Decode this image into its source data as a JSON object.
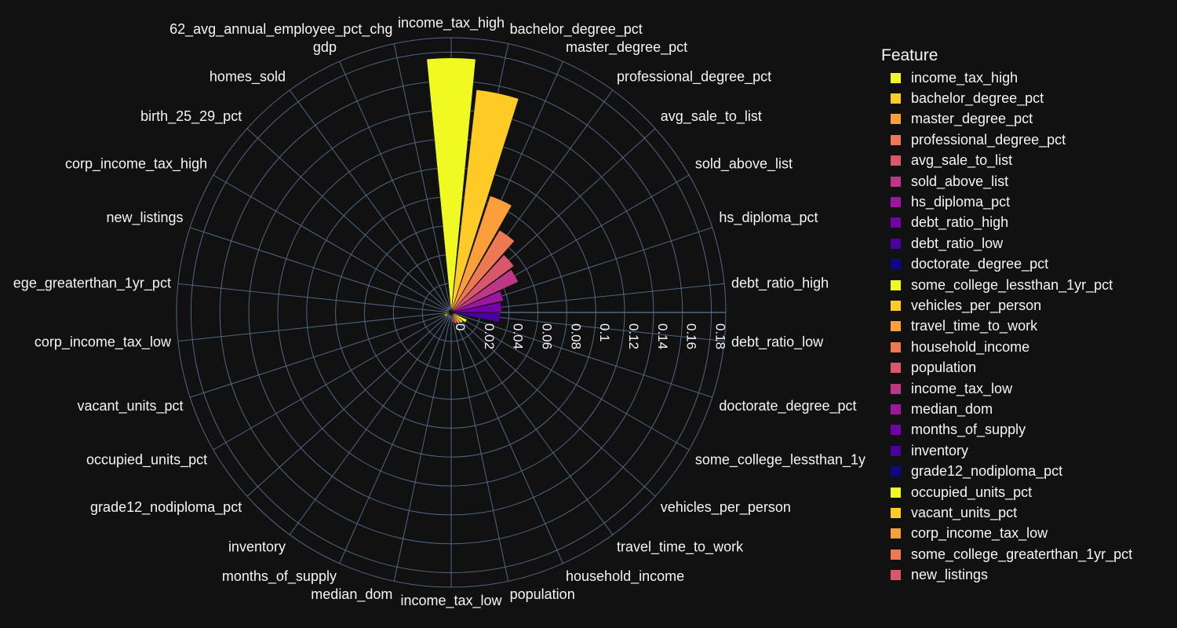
{
  "chart_data": {
    "type": "bar",
    "subtype": "polar-bar",
    "colors": {
      "background": "#111111",
      "grid": "#506784",
      "text": "#f2f5fa",
      "palette": [
        "#f0f921",
        "#fdca26",
        "#fb9f3a",
        "#ed7953",
        "#d8576b",
        "#bd3786",
        "#9c179e",
        "#7201a8",
        "#46039f",
        "#0d0887"
      ]
    },
    "radial_ticks": [
      "0",
      "0.02",
      "0.04",
      "0.06",
      "0.08",
      "0.1",
      "0.12",
      "0.14",
      "0.16",
      "0.18"
    ],
    "radial_range": [
      0,
      0.19
    ],
    "legend_title": "Feature",
    "angular_direction": "clockwise",
    "rotation_start": "top",
    "categories": [
      "income_tax_high",
      "bachelor_degree_pct",
      "master_degree_pct",
      "professional_degree_pct",
      "avg_sale_to_list",
      "sold_above_list",
      "hs_diploma_pct",
      "debt_ratio_high",
      "debt_ratio_low",
      "doctorate_degree_pct",
      "some_college_lessthan_1yr_pct",
      "vehicles_per_person",
      "travel_time_to_work",
      "household_income",
      "population",
      "income_tax_low",
      "median_dom",
      "months_of_supply",
      "inventory",
      "grade12_nodiploma_pct",
      "occupied_units_pct",
      "vacant_units_pct",
      "corp_income_tax_low",
      "some_college_greaterthan_1yr_pct",
      "new_listings",
      "corp_income_tax_high",
      "birth_25_29_pct",
      "homes_sold",
      "gdp",
      "62_avg_annual_employee_pct_chg"
    ],
    "angular_labels": [
      "income_tax_high",
      "bachelor_degree_pct",
      "master_degree_pct",
      "professional_degree_pct",
      "avg_sale_to_list",
      "sold_above_list",
      "hs_diploma_pct",
      "debt_ratio_high",
      "debt_ratio_low",
      "doctorate_degree_pct",
      "some_college_lessthan_1y",
      "vehicles_per_person",
      "travel_time_to_work",
      "household_income",
      "population",
      "income_tax_low",
      "median_dom",
      "months_of_supply",
      "inventory",
      "grade12_nodiploma_pct",
      "occupied_units_pct",
      "vacant_units_pct",
      "corp_income_tax_low",
      "ege_greaterthan_1yr_pct",
      "new_listings",
      "corp_income_tax_high",
      "birth_25_29_pct",
      "homes_sold",
      "gdp",
      "62_avg_annual_employee_pct_chg"
    ],
    "values": [
      0.176,
      0.155,
      0.085,
      0.066,
      0.054,
      0.051,
      0.037,
      0.035,
      0.034,
      0.002,
      0.012,
      0.01,
      0.009,
      0.008,
      0.007,
      0.002,
      0.002,
      0.002,
      0.002,
      0.002,
      0.005,
      0.005,
      0.004,
      0.003,
      0.002,
      0.002,
      0.002,
      0.002,
      0.002,
      0.002
    ],
    "legend_entries": [
      "income_tax_high",
      "bachelor_degree_pct",
      "master_degree_pct",
      "professional_degree_pct",
      "avg_sale_to_list",
      "sold_above_list",
      "hs_diploma_pct",
      "debt_ratio_high",
      "debt_ratio_low",
      "doctorate_degree_pct",
      "some_college_lessthan_1yr_pct",
      "vehicles_per_person",
      "travel_time_to_work",
      "household_income",
      "population",
      "income_tax_low",
      "median_dom",
      "months_of_supply",
      "inventory",
      "grade12_nodiploma_pct",
      "occupied_units_pct",
      "vacant_units_pct",
      "corp_income_tax_low",
      "some_college_greaterthan_1yr_pct",
      "new_listings"
    ]
  }
}
